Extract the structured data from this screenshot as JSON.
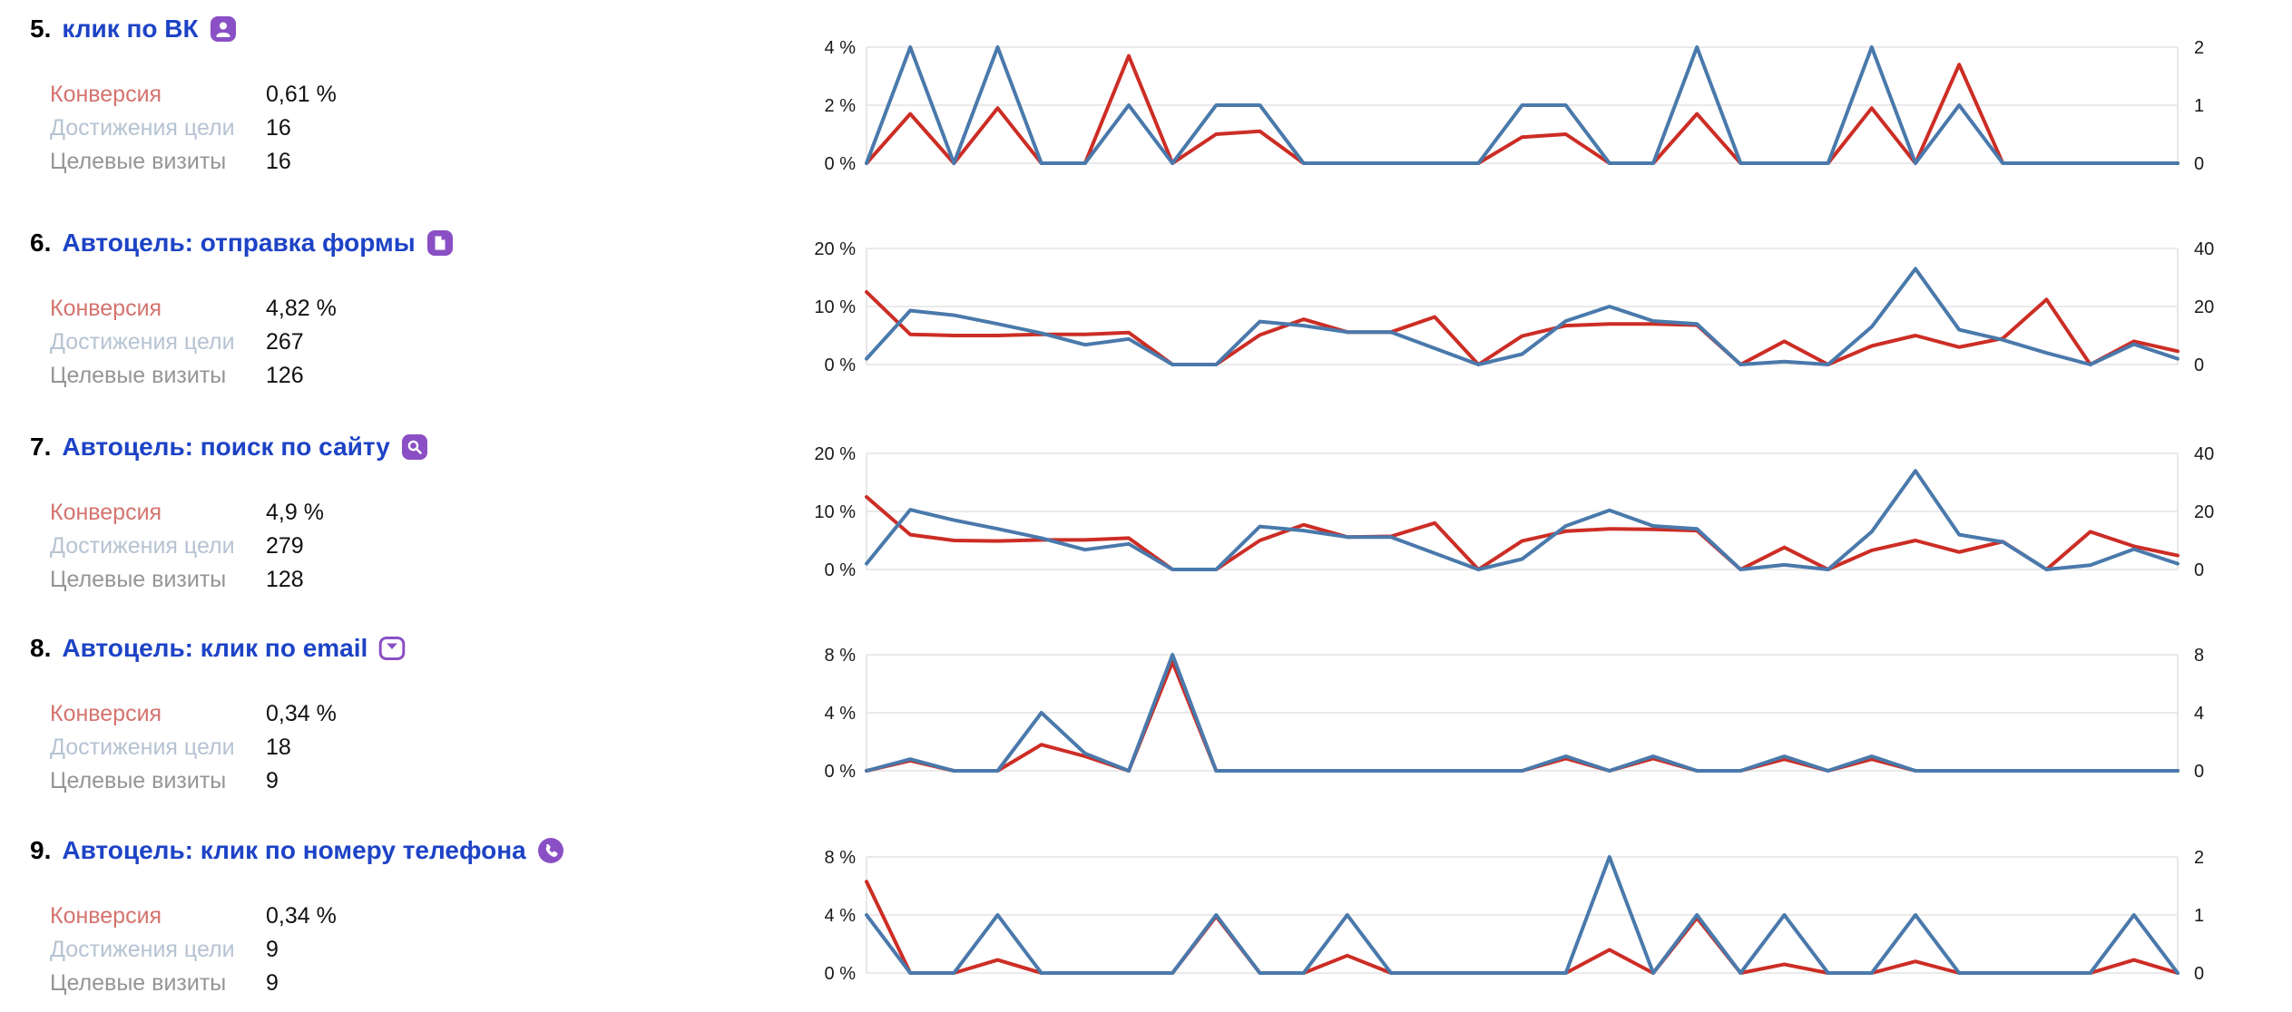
{
  "colors": {
    "link_blue": "#1d43c6",
    "icon_purple": "#8a4fc5",
    "line_blue": "#4a79ab",
    "line_red": "#cc2d25",
    "grid_grey": "#e3e3e3",
    "label_conversion": "#d4736e",
    "label_reaches": "#b6c3d2",
    "label_visits": "#959595"
  },
  "stats_labels": {
    "conversion": "Конверсия",
    "reaches": "Достижения цели",
    "visits": "Целевые визиты"
  },
  "goals": [
    {
      "num": "5.",
      "title": "клик по ВК",
      "icon": "user-icon",
      "conversion": "0,61 %",
      "reaches": "16",
      "visits": "16"
    },
    {
      "num": "6.",
      "title": "Автоцель: отправка формы",
      "icon": "form-page-icon",
      "conversion": "4,82 %",
      "reaches": "267",
      "visits": "126"
    },
    {
      "num": "7.",
      "title": "Автоцель: поиск по сайту",
      "icon": "search-icon",
      "conversion": "4,9 %",
      "reaches": "279",
      "visits": "128"
    },
    {
      "num": "8.",
      "title": "Автоцель: клик по email",
      "icon": "email-icon",
      "conversion": "0,34 %",
      "reaches": "18",
      "visits": "9"
    },
    {
      "num": "9.",
      "title": "Автоцель: клик по номеру телефона",
      "icon": "phone-icon",
      "conversion": "0,34 %",
      "reaches": "9",
      "visits": "9"
    }
  ],
  "chart_data": [
    {
      "type": "line",
      "goal": "клик по ВК",
      "left_axis": {
        "ticks": [
          "4 %",
          "2 %",
          "0 %"
        ],
        "max": 4,
        "unit": "%"
      },
      "right_axis": {
        "ticks": [
          "2",
          "1",
          "0"
        ],
        "max": 2,
        "unit": "count"
      },
      "grid": "horizontal-only",
      "x_tick_labels": "none",
      "series": [
        {
          "name": "Конверсия",
          "color": "#cc2d25",
          "axis": "left",
          "values": [
            0,
            1.7,
            0,
            1.9,
            0,
            0,
            3.7,
            0,
            1.0,
            1.1,
            0,
            0,
            0,
            0,
            0,
            0.9,
            1.0,
            0,
            0,
            1.7,
            0,
            0,
            0,
            1.9,
            0,
            3.4,
            0,
            0,
            0,
            0,
            0
          ]
        },
        {
          "name": "Достижения цели",
          "color": "#4a79ab",
          "axis": "right",
          "values": [
            0,
            2,
            0,
            2,
            0,
            0,
            1,
            0,
            1,
            1,
            0,
            0,
            0,
            0,
            0,
            1,
            1,
            0,
            0,
            2,
            0,
            0,
            0,
            2,
            0,
            1,
            0,
            0,
            0,
            0,
            0
          ]
        }
      ]
    },
    {
      "type": "line",
      "goal": "Автоцель: отправка формы",
      "left_axis": {
        "ticks": [
          "20 %",
          "10 %",
          "0 %"
        ],
        "max": 20,
        "unit": "%"
      },
      "right_axis": {
        "ticks": [
          "40",
          "20",
          "0"
        ],
        "max": 40,
        "unit": "count"
      },
      "grid": "horizontal-only",
      "x_tick_labels": "none",
      "series": [
        {
          "name": "Конверсия",
          "color": "#cc2d25",
          "axis": "left",
          "values": [
            12.5,
            5.2,
            5.0,
            5.0,
            5.2,
            5.2,
            5.5,
            0,
            0,
            5.1,
            7.8,
            5.6,
            5.6,
            8.2,
            0,
            4.9,
            6.7,
            7.0,
            7.0,
            6.8,
            0,
            4.0,
            0,
            3.2,
            5.0,
            3.0,
            4.5,
            11.2,
            0,
            4.0,
            2.3
          ]
        },
        {
          "name": "Достижения цели",
          "color": "#4a79ab",
          "axis": "right",
          "values": [
            2,
            18.6,
            17,
            14,
            10.8,
            6.8,
            8.8,
            0,
            0,
            14.8,
            13.4,
            11.2,
            11.2,
            5.6,
            0,
            3.6,
            15,
            20,
            15,
            14,
            0,
            1,
            0,
            13,
            33,
            12,
            8.5,
            4,
            0,
            7,
            2
          ]
        }
      ]
    },
    {
      "type": "line",
      "goal": "Автоцель: поиск по сайту",
      "left_axis": {
        "ticks": [
          "20 %",
          "10 %",
          "0 %"
        ],
        "max": 20,
        "unit": "%"
      },
      "right_axis": {
        "ticks": [
          "40",
          "20",
          "0"
        ],
        "max": 40,
        "unit": "count"
      },
      "grid": "horizontal-only",
      "x_tick_labels": "none",
      "series": [
        {
          "name": "Конверсия",
          "color": "#cc2d25",
          "axis": "left",
          "values": [
            12.5,
            6.0,
            5.0,
            4.9,
            5.1,
            5.1,
            5.4,
            0,
            0,
            5.0,
            7.7,
            5.6,
            5.7,
            8.0,
            0,
            4.9,
            6.6,
            7.0,
            6.9,
            6.7,
            0,
            3.8,
            0,
            3.3,
            5.0,
            3.0,
            4.8,
            0,
            6.5,
            4.0,
            2.4
          ]
        },
        {
          "name": "Достижения цели",
          "color": "#4a79ab",
          "axis": "right",
          "values": [
            2,
            20.6,
            17,
            14,
            10.8,
            6.8,
            8.8,
            0,
            0,
            14.8,
            13.4,
            11.2,
            11.2,
            5.6,
            0,
            3.6,
            15,
            20.4,
            15,
            14,
            0,
            1.6,
            0,
            13,
            34,
            12,
            9.5,
            0,
            1.5,
            7,
            2
          ]
        }
      ]
    },
    {
      "type": "line",
      "goal": "Автоцель: клик по email",
      "left_axis": {
        "ticks": [
          "8 %",
          "4 %",
          "0 %"
        ],
        "max": 8,
        "unit": "%"
      },
      "right_axis": {
        "ticks": [
          "8",
          "4",
          "0"
        ],
        "max": 8,
        "unit": "count"
      },
      "grid": "horizontal-only",
      "x_tick_labels": "none",
      "series": [
        {
          "name": "Конверсия",
          "color": "#cc2d25",
          "axis": "left",
          "values": [
            0,
            0.7,
            0,
            0,
            1.8,
            1.0,
            0,
            7.5,
            0,
            0,
            0,
            0,
            0,
            0,
            0,
            0,
            0.85,
            0,
            0.85,
            0,
            0,
            0.8,
            0,
            0.8,
            0,
            0,
            0,
            0,
            0,
            0,
            0
          ]
        },
        {
          "name": "Достижения цели",
          "color": "#4a79ab",
          "axis": "right",
          "values": [
            0,
            0.8,
            0,
            0,
            4,
            1.2,
            0,
            8,
            0,
            0,
            0,
            0,
            0,
            0,
            0,
            0,
            1,
            0,
            1,
            0,
            0,
            1,
            0,
            1,
            0,
            0,
            0,
            0,
            0,
            0,
            0
          ]
        }
      ]
    },
    {
      "type": "line",
      "goal": "Автоцель: клик по номеру телефона",
      "left_axis": {
        "ticks": [
          "8 %",
          "4 %",
          "0 %"
        ],
        "max": 8,
        "unit": "%"
      },
      "right_axis": {
        "ticks": [
          "2",
          "1",
          "0"
        ],
        "max": 2,
        "unit": "count"
      },
      "grid": "horizontal-only",
      "x_tick_labels": "none",
      "series": [
        {
          "name": "Конверсия",
          "color": "#cc2d25",
          "axis": "left",
          "values": [
            6.3,
            0,
            0,
            0.9,
            0,
            0,
            0,
            0,
            3.9,
            0,
            0,
            1.2,
            0,
            0,
            0,
            0,
            0,
            1.6,
            0,
            3.8,
            0,
            0.6,
            0,
            0,
            0.8,
            0,
            0,
            0,
            0,
            0.9,
            0
          ]
        },
        {
          "name": "Достижения цели",
          "color": "#4a79ab",
          "axis": "right",
          "values": [
            1,
            0,
            0,
            1,
            0,
            0,
            0,
            0,
            1,
            0,
            0,
            1,
            0,
            0,
            0,
            0,
            0,
            2,
            0,
            1,
            0,
            1,
            0,
            0,
            1,
            0,
            0,
            0,
            0,
            1,
            0
          ]
        }
      ]
    }
  ],
  "layout": {
    "info_tops": [
      16,
      252,
      477,
      699,
      922
    ],
    "chart_tops": [
      8,
      230,
      456,
      678,
      901
    ]
  }
}
